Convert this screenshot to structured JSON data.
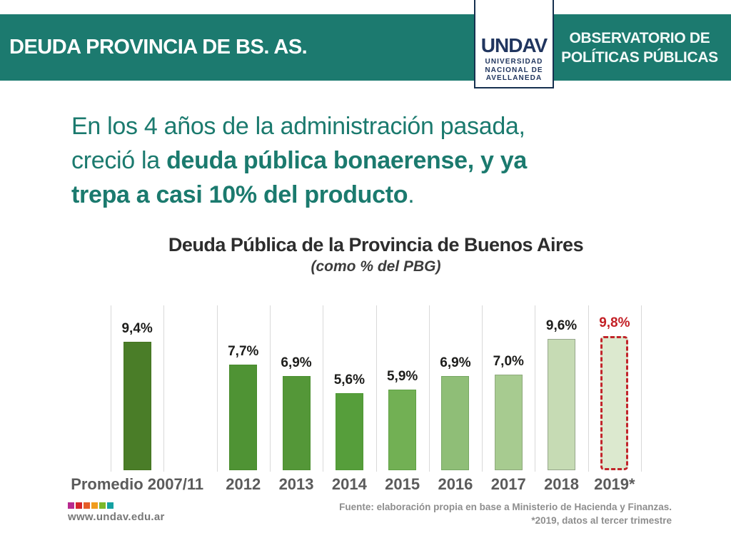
{
  "header": {
    "title": "DEUDA PROVINCIA DE BS. AS.",
    "observatory_line1": "OBSERVATORIO DE",
    "observatory_line2": "POLÍTICAS PÚBLICAS",
    "logo": {
      "wordmark": "UNDAV",
      "sub_line1": "UNIVERSIDAD",
      "sub_line2": "NACIONAL DE",
      "sub_line3": "AVELLANEDA"
    }
  },
  "headline": {
    "line1": "En los 4 años de la administración pasada,",
    "line2_regular": "creció la ",
    "line2_bold": "deuda pública bonaerense, y ya",
    "line3_bold": "trepa a casi 10% del producto",
    "line3_end": "."
  },
  "chart_data": {
    "type": "bar",
    "title": "Deuda Pública de la Provincia de Buenos Aires",
    "subtitle": "(como % del PBG)",
    "categories": [
      "Promedio 2007/11",
      "2012",
      "2013",
      "2014",
      "2015",
      "2016",
      "2017",
      "2018",
      "2019*"
    ],
    "values": [
      9.4,
      7.7,
      6.9,
      5.6,
      5.9,
      6.9,
      7.0,
      9.6,
      9.8
    ],
    "labels": [
      "9,4%",
      "7,7%",
      "6,9%",
      "5,6%",
      "5,9%",
      "6,9%",
      "7,0%",
      "9,6%",
      "9,8%"
    ],
    "unit": "%",
    "ylim": [
      0,
      12
    ],
    "grid": "vertical",
    "bar_colors": [
      "#4a7d28",
      "#4f9334",
      "#549738",
      "#569e3b",
      "#72b054",
      "#8fbe77",
      "#a7cb90",
      "#c6dbb4",
      "#dce9cf"
    ],
    "bar_border_colors": [
      "#44731f",
      "#478a2b",
      "#4c8f30",
      "#4e9733",
      "#60a144",
      "#77a763",
      "#8fa97d",
      "#97a78c",
      "#c2252b"
    ],
    "highlight_index": 8,
    "highlight_color": "#c32026"
  },
  "footer": {
    "dot_colors": [
      "#b82a90",
      "#d5262c",
      "#e65c28",
      "#f09c1e",
      "#7cb82a",
      "#14a1a2"
    ],
    "url": "www.undav.edu.ar",
    "source_line1": "Fuente: elaboración propia en base a Ministerio de Hacienda y Finanzas.",
    "source_line2": "*2019, datos al tercer trimestre"
  },
  "colors": {
    "teal": "#1c7a6f",
    "navy": "#21365f"
  }
}
